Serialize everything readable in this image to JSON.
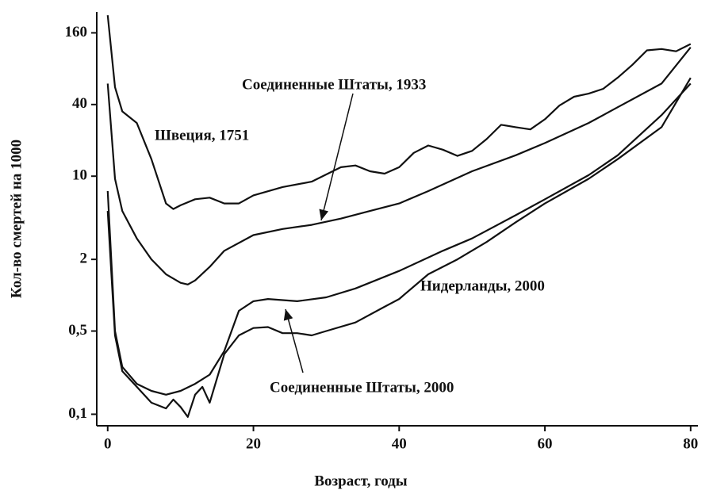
{
  "chart_data": {
    "type": "line",
    "xlabel": "Возраст, годы",
    "ylabel": "Кол-во смертей на 1000",
    "log_y": true,
    "xlim": [
      -1.5,
      81
    ],
    "xticks": [
      0,
      20,
      40,
      60,
      80
    ],
    "ylim": [
      0.08,
      240
    ],
    "yticks": [
      {
        "value": 0.1,
        "label": "0,1"
      },
      {
        "value": 0.5,
        "label": "0,5"
      },
      2,
      10,
      40,
      160
    ],
    "color": "#111111",
    "series": [
      {
        "name": "Швеция, 1751",
        "x": [
          0,
          1,
          2,
          4,
          6,
          8,
          9,
          10,
          12,
          14,
          16,
          18,
          20,
          24,
          28,
          32,
          34,
          36,
          38,
          40,
          42,
          44,
          46,
          48,
          50,
          52,
          54,
          56,
          58,
          60,
          62,
          64,
          66,
          68,
          70,
          72,
          74,
          76,
          78,
          80
        ],
        "values": [
          225,
          56,
          35,
          28,
          13.9,
          5.9,
          5.3,
          5.7,
          6.4,
          6.6,
          5.9,
          5.9,
          6.9,
          8.1,
          9.0,
          11.9,
          12.3,
          11.0,
          10.5,
          11.9,
          15.7,
          18.1,
          16.7,
          14.8,
          16.3,
          20.5,
          27.0,
          25.8,
          24.7,
          30.1,
          39.2,
          46.5,
          49.4,
          54.2,
          67.3,
          86.2,
          114,
          117,
          112,
          129
        ]
      },
      {
        "name": "Соединенные Штаты, 1933",
        "x": [
          0,
          1,
          2,
          4,
          6,
          8,
          10,
          11,
          12,
          14,
          16,
          20,
          24,
          28,
          32,
          36,
          40,
          44,
          50,
          56,
          60,
          66,
          70,
          76,
          80
        ],
        "values": [
          60,
          9.5,
          5.1,
          3.0,
          2.0,
          1.5,
          1.27,
          1.23,
          1.33,
          1.73,
          2.36,
          3.2,
          3.6,
          3.9,
          4.4,
          5.1,
          5.9,
          7.5,
          11,
          15,
          19,
          28,
          38,
          60,
          121
        ]
      },
      {
        "name": "Нидерланды, 2000",
        "x": [
          0,
          1,
          2,
          4,
          6,
          8,
          10,
          12,
          14,
          16,
          18,
          20,
          22,
          26,
          30,
          34,
          40,
          46,
          50,
          56,
          60,
          66,
          70,
          76,
          80
        ],
        "values": [
          7.5,
          0.5,
          0.25,
          0.18,
          0.157,
          0.146,
          0.157,
          0.18,
          0.215,
          0.34,
          0.74,
          0.89,
          0.93,
          0.89,
          0.96,
          1.14,
          1.6,
          2.36,
          3.0,
          4.7,
          6.4,
          10.2,
          15,
          32.6,
          60
        ]
      },
      {
        "name": "Соединенные Штаты, 2000",
        "x": [
          0,
          1,
          2,
          4,
          6,
          8,
          9,
          10,
          11,
          12,
          13,
          14,
          16,
          18,
          20,
          22,
          24,
          26,
          28,
          30,
          34,
          38,
          40,
          44,
          48,
          52,
          56,
          60,
          66,
          70,
          76,
          80
        ],
        "values": [
          5.1,
          0.46,
          0.23,
          0.17,
          0.125,
          0.112,
          0.133,
          0.115,
          0.095,
          0.146,
          0.17,
          0.125,
          0.32,
          0.46,
          0.53,
          0.54,
          0.48,
          0.48,
          0.46,
          0.5,
          0.59,
          0.8,
          0.93,
          1.5,
          2.0,
          2.8,
          4.1,
          5.9,
          9.5,
          13.9,
          25.8,
          67
        ]
      }
    ]
  }
}
